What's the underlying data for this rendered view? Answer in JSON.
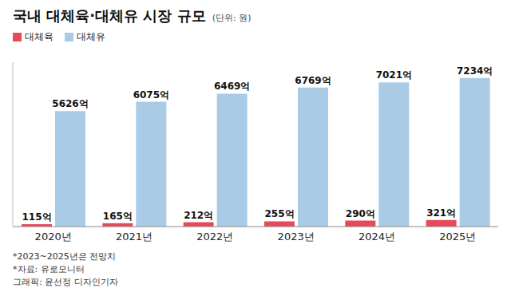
{
  "chart_data": {
    "type": "bar",
    "title": "국내 대체육·대체유 시장 규모",
    "subtitle": "(단위: 원)",
    "categories": [
      "2020년",
      "2021년",
      "2022년",
      "2023년",
      "2024년",
      "2025년"
    ],
    "series": [
      {
        "name": "대체육",
        "color": "#e8495a",
        "values": [
          115,
          165,
          212,
          255,
          290,
          321
        ],
        "value_labels": [
          "115억",
          "165억",
          "212억",
          "255억",
          "290억",
          "321억"
        ]
      },
      {
        "name": "대체유",
        "color": "#a9cbe6",
        "values": [
          5626,
          6075,
          6469,
          6769,
          7021,
          7234
        ],
        "value_labels": [
          "5626억",
          "6075억",
          "6469억",
          "6769억",
          "7021억",
          "7234억"
        ]
      }
    ],
    "ylim": [
      0,
      8000
    ],
    "tick_labels": "x",
    "grid": false,
    "legend": "top-left",
    "data_labels": true,
    "annotations": [
      "*2023~2025년은 전망치",
      "*자료: 유로모니터",
      "그래픽: 윤선정 디자인기자"
    ]
  }
}
